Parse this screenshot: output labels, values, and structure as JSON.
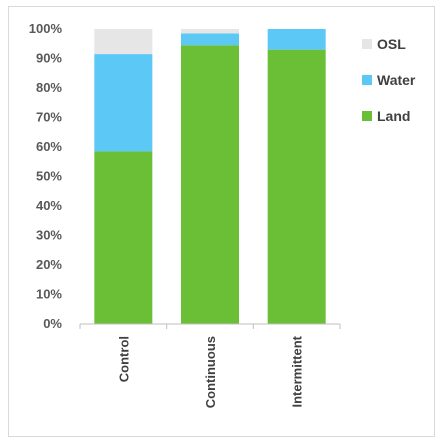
{
  "chart_data": {
    "type": "bar",
    "stacked": true,
    "categories": [
      "Control",
      "Continuous",
      "Intermittent"
    ],
    "series": [
      {
        "name": "Land",
        "color": "#6bbf37",
        "values": [
          58.5,
          94.5,
          93.0
        ]
      },
      {
        "name": "Water",
        "color": "#5bc8f5",
        "values": [
          33.0,
          4.0,
          7.0
        ]
      },
      {
        "name": "OSL",
        "color": "#e6e6e6",
        "values": [
          8.5,
          1.5,
          0.0
        ]
      }
    ],
    "yticks": [
      "0%",
      "10%",
      "20%",
      "30%",
      "40%",
      "50%",
      "60%",
      "70%",
      "80%",
      "90%",
      "100%"
    ],
    "ylim": [
      0,
      100
    ],
    "legend_position": "right",
    "legend_order": [
      "OSL",
      "Water",
      "Land"
    ],
    "grid": false
  }
}
